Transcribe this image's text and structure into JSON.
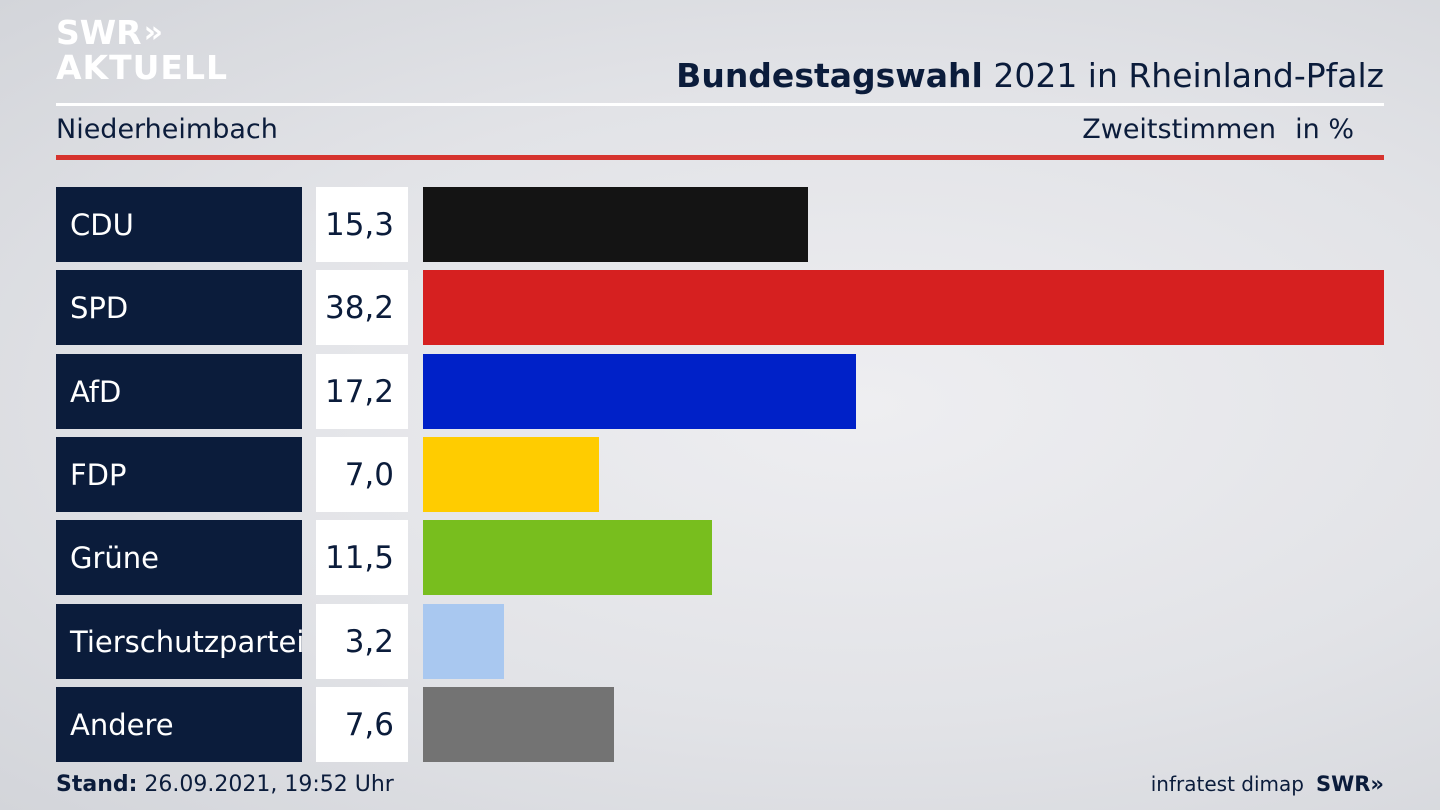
{
  "logo": {
    "line1": "SWR",
    "chevrons": "»",
    "line2": "AKTUELL"
  },
  "header": {
    "title_bold": "Bundestagswahl",
    "title_rest": "2021 in Rheinland-Pfalz"
  },
  "subheader": {
    "place": "Niederheimbach",
    "vote_type": "Zweitstimmen",
    "unit": "in %"
  },
  "chart_data": {
    "type": "bar",
    "orientation": "horizontal",
    "categories": [
      "CDU",
      "SPD",
      "AfD",
      "FDP",
      "Grüne",
      "Tierschutzpartei",
      "Andere"
    ],
    "values": [
      15.3,
      38.2,
      17.2,
      7.0,
      11.5,
      3.2,
      7.6
    ],
    "value_labels": [
      "15,3",
      "38,2",
      "17,2",
      "7,0",
      "11,5",
      "3,2",
      "7,6"
    ],
    "colors": [
      "#141414",
      "#d62020",
      "#0021c8",
      "#ffcc00",
      "#78be1e",
      "#a9c8f0",
      "#737373"
    ],
    "unit": "in %",
    "xlim": [
      0,
      38.2
    ],
    "grid": false,
    "legend": "none"
  },
  "footer": {
    "stand_label": "Stand:",
    "stand_value": "26.09.2021, 19:52 Uhr",
    "source": "infratest dimap",
    "brand": "SWR",
    "brand_chevrons": "»"
  }
}
